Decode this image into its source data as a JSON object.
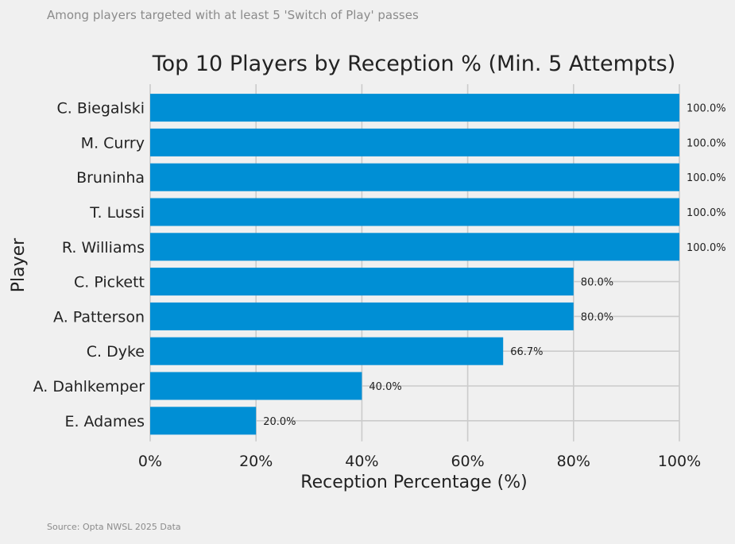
{
  "subtitle": "Among players targeted with at least 5 'Switch of Play' passes",
  "source": "Source: Opta NWSL 2025 Data",
  "colors": {
    "background": "#f0f0f0",
    "bar": "#008fd5",
    "grid": "#cbcbcb",
    "text": "#222222",
    "muted": "#8b8b8b"
  },
  "chart_data": {
    "type": "bar",
    "orientation": "horizontal",
    "title": "Top 10 Players by Reception % (Min. 5 Attempts)",
    "xlabel": "Reception Percentage (%)",
    "ylabel": "Player",
    "xlim": [
      0,
      100
    ],
    "grid": true,
    "xticks": [
      {
        "value": 0,
        "label": "0%"
      },
      {
        "value": 20,
        "label": "20%"
      },
      {
        "value": 40,
        "label": "40%"
      },
      {
        "value": 60,
        "label": "60%"
      },
      {
        "value": 80,
        "label": "80%"
      },
      {
        "value": 100,
        "label": "100%"
      }
    ],
    "categories": [
      "C. Biegalski",
      "M. Curry",
      "Bruninha",
      "T. Lussi",
      "R. Williams",
      "C. Pickett",
      "A. Patterson",
      "C. Dyke",
      "A. Dahlkemper",
      "E. Adames"
    ],
    "values": [
      100,
      100,
      100,
      100,
      100,
      80,
      80,
      66.7,
      40,
      20
    ],
    "value_labels": [
      "100.0%",
      "100.0%",
      "100.0%",
      "100.0%",
      "100.0%",
      "80.0%",
      "80.0%",
      "66.7%",
      "40.0%",
      "20.0%"
    ]
  }
}
